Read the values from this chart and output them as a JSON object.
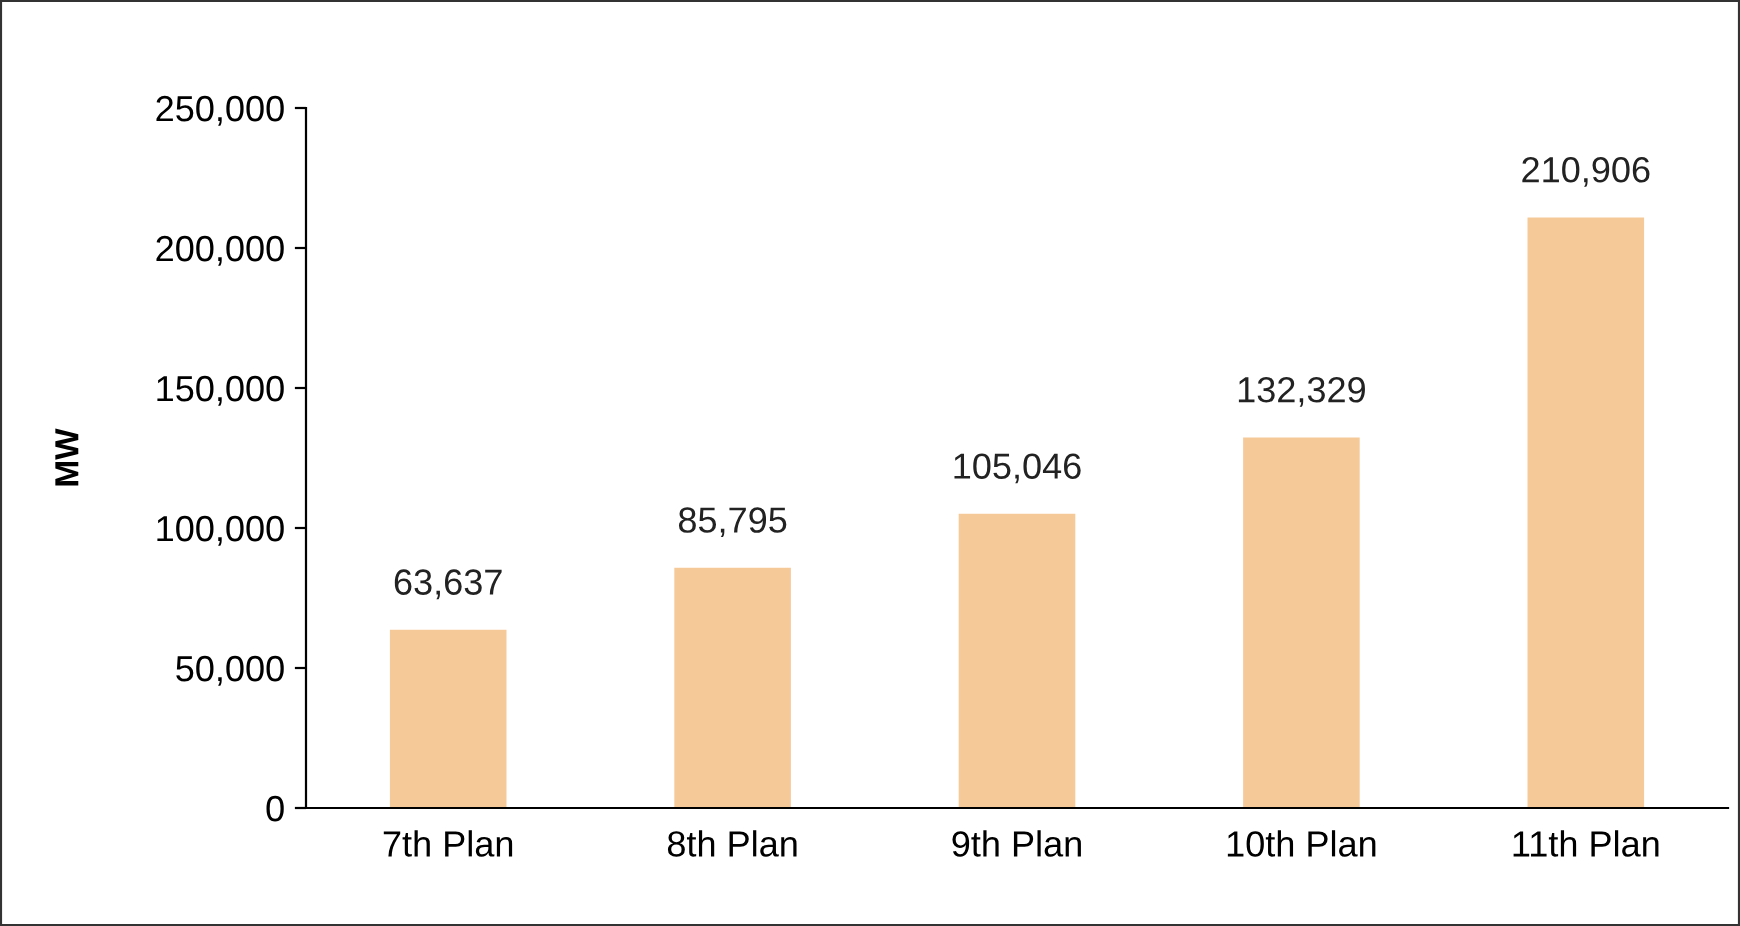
{
  "chart_data": {
    "type": "bar",
    "ylabel": "MW",
    "categories": [
      "7th Plan",
      "8th Plan",
      "9th Plan",
      "10th Plan",
      "11th Plan"
    ],
    "values": [
      63637,
      85795,
      105046,
      132329,
      210906
    ],
    "color": "#f6ca98",
    "ylim": [
      0,
      250000
    ],
    "yticks": [
      {
        "value": 0,
        "label": "0"
      },
      {
        "value": 50000,
        "label": "50,000"
      },
      {
        "value": 100000,
        "label": "100,000"
      },
      {
        "value": 150000,
        "label": "150,000"
      },
      {
        "value": 200000,
        "label": "200,000"
      },
      {
        "value": 250000,
        "label": "250,000"
      }
    ],
    "value_labels": [
      "63,637",
      "85,795",
      "105,046",
      "132,329",
      "210,906"
    ],
    "grid": false,
    "legend": false
  }
}
